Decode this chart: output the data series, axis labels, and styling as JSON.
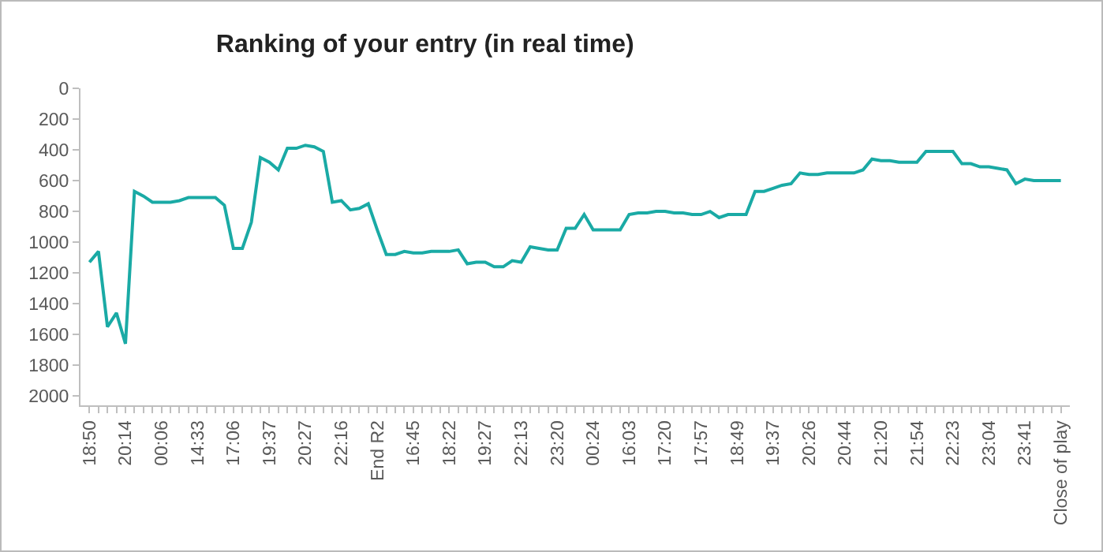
{
  "chart_data": {
    "type": "line",
    "title": "Ranking of your entry (in real time)",
    "categories": [
      "18:50",
      null,
      null,
      null,
      "20:14",
      null,
      null,
      null,
      "00:06",
      null,
      null,
      null,
      "14:33",
      null,
      null,
      null,
      "17:06",
      null,
      null,
      null,
      "19:37",
      null,
      null,
      null,
      "20:27",
      null,
      null,
      null,
      "22:16",
      null,
      null,
      null,
      "End R2",
      null,
      null,
      null,
      "16:45",
      null,
      null,
      null,
      "18:22",
      null,
      null,
      null,
      "19:27",
      null,
      null,
      null,
      "22:13",
      null,
      null,
      null,
      "23:20",
      null,
      null,
      null,
      "00:24",
      null,
      null,
      null,
      "16:03",
      null,
      null,
      null,
      "17:20",
      null,
      null,
      null,
      "17:57",
      null,
      null,
      null,
      "18:49",
      null,
      null,
      null,
      "19:37",
      null,
      null,
      null,
      "20:26",
      null,
      null,
      null,
      "20:44",
      null,
      null,
      null,
      "21:20",
      null,
      null,
      null,
      "21:54",
      null,
      null,
      null,
      "22:23",
      null,
      null,
      null,
      "23:04",
      null,
      null,
      null,
      "23:41",
      null,
      null,
      null,
      "Close of play"
    ],
    "series": [
      {
        "color": "#1aaaa5",
        "values": [
          1130,
          1060,
          1550,
          1460,
          1660,
          670,
          700,
          740,
          740,
          740,
          730,
          710,
          710,
          710,
          710,
          760,
          1040,
          1040,
          870,
          450,
          480,
          530,
          390,
          390,
          370,
          380,
          410,
          740,
          730,
          790,
          780,
          750,
          920,
          1080,
          1080,
          1060,
          1070,
          1070,
          1060,
          1060,
          1060,
          1050,
          1140,
          1130,
          1130,
          1160,
          1160,
          1120,
          1130,
          1030,
          1040,
          1050,
          1050,
          910,
          910,
          820,
          920,
          920,
          920,
          920,
          820,
          810,
          810,
          800,
          800,
          810,
          810,
          820,
          820,
          800,
          840,
          820,
          820,
          820,
          670,
          670,
          650,
          630,
          620,
          550,
          560,
          560,
          550,
          550,
          550,
          550,
          530,
          460,
          470,
          470,
          480,
          480,
          480,
          410,
          410,
          410,
          410,
          490,
          490,
          510,
          510,
          520,
          530,
          620,
          590,
          600,
          600,
          600,
          600
        ]
      }
    ],
    "ylim": [
      2060,
      0
    ],
    "yticks": [
      0,
      200,
      400,
      600,
      800,
      1000,
      1200,
      1400,
      1600,
      1800,
      2000
    ],
    "grid": false,
    "marker": "none",
    "line_style": "solid"
  }
}
